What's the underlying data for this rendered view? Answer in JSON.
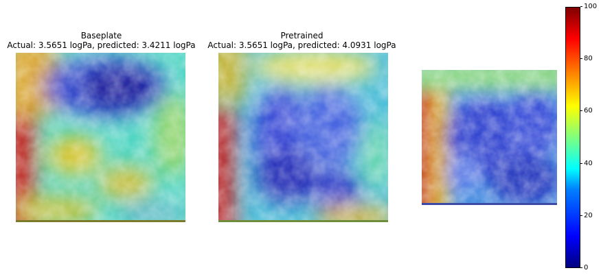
{
  "panels": [
    {
      "title_line1": "Baseplate",
      "title_line2": "Actual: 3.5651 logPa, predicted: 3.4211 logPa"
    },
    {
      "title_line1": "Pretrained",
      "title_line2": "Actual: 3.5651 logPa, predicted: 4.0931 logPa"
    },
    {
      "title_line1": "",
      "title_line2": ""
    }
  ],
  "colorbar": {
    "colormap": "jet",
    "ticks": [
      "0",
      "20",
      "40",
      "60",
      "80",
      "100"
    ]
  }
}
